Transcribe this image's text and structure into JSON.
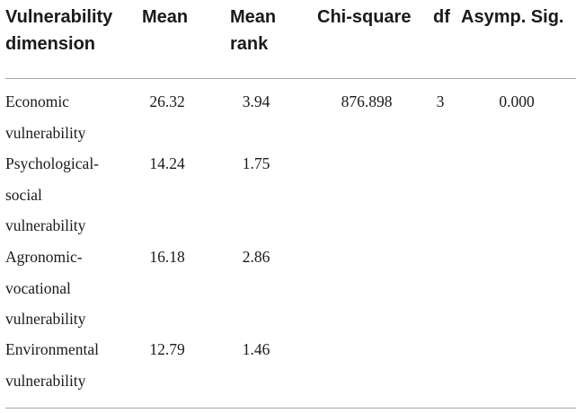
{
  "table": {
    "headers": {
      "dimension": [
        "Vulnerability",
        "dimension"
      ],
      "mean": "Mean",
      "mean_rank": [
        "Mean",
        "rank"
      ],
      "chi_square": "Chi-square",
      "df": "df",
      "asymp_sig": "Asymp. Sig."
    },
    "rows": [
      {
        "dimension": [
          "Economic",
          "vulnerability"
        ],
        "mean": "26.32",
        "mean_rank": "3.94",
        "chi_square": "876.898",
        "df": "3",
        "asymp_sig": "0.000"
      },
      {
        "dimension": [
          "Psychological-",
          "social",
          "vulnerability"
        ],
        "mean": "14.24",
        "mean_rank": "1.75"
      },
      {
        "dimension": [
          "Agronomic-",
          "vocational",
          "vulnerability"
        ],
        "mean": "16.18",
        "mean_rank": "2.86"
      },
      {
        "dimension": [
          "Environmental",
          "vulnerability"
        ],
        "mean": "12.79",
        "mean_rank": "1.46"
      }
    ]
  }
}
